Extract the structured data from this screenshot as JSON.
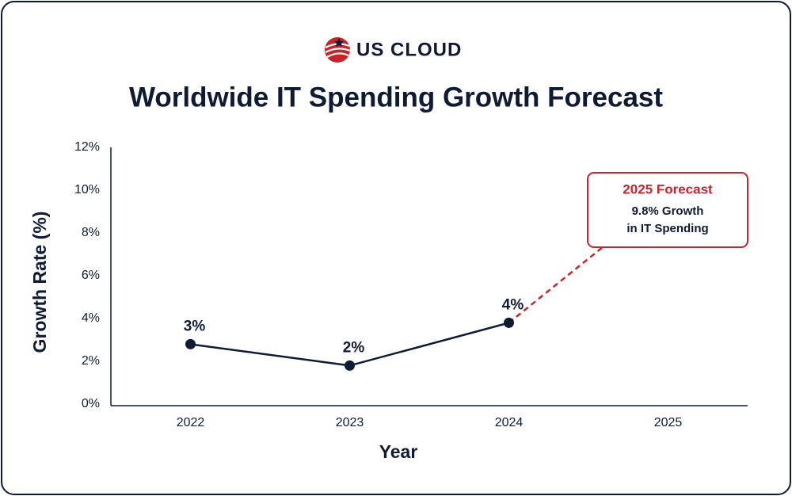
{
  "chart_data": {
    "type": "line",
    "brand": "US CLOUD",
    "title": "Worldwide IT Spending Growth Forecast",
    "x_label": "Year",
    "y_label": "Growth Rate (%)",
    "categories": [
      "2022",
      "2023",
      "2024",
      "2025"
    ],
    "series": [
      {
        "color": "#0f1a33",
        "values": [
          2.8,
          1.8,
          3.8,
          null
        ],
        "value_labels": [
          "3%",
          "2%",
          "4%",
          null
        ]
      },
      {
        "color": "#c1272d",
        "dashed": true,
        "values": [
          null,
          null,
          3.8,
          9.8
        ]
      }
    ],
    "ylim": [
      0,
      12
    ],
    "yticks": [
      {
        "value": 0,
        "label": "0%"
      },
      {
        "value": 2,
        "label": "2%"
      },
      {
        "value": 4,
        "label": "4%"
      },
      {
        "value": 6,
        "label": "6%"
      },
      {
        "value": 8,
        "label": "8%"
      },
      {
        "value": 10,
        "label": "10%"
      },
      {
        "value": 12,
        "label": "12%"
      }
    ],
    "annotation": {
      "title": "2025 Forecast",
      "lines": [
        "9.8% Growth",
        "in IT Spending"
      ]
    },
    "grid": false
  }
}
